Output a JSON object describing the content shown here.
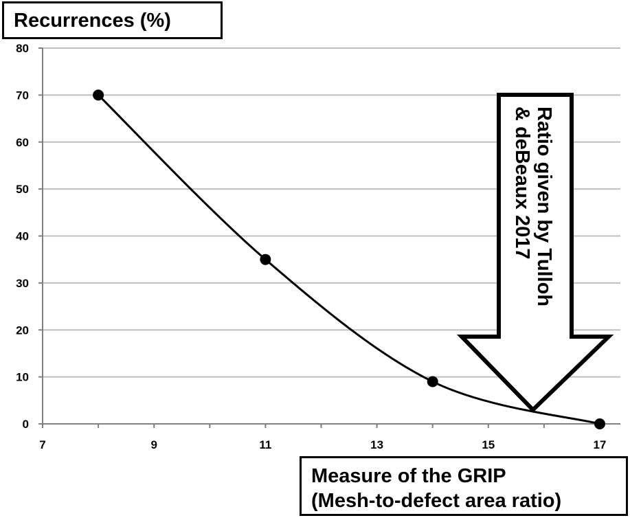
{
  "chart_data": {
    "type": "line",
    "ylabel": "Recurrences (%)",
    "xlabel": [
      "Measure of the GRIP",
      "(Mesh-to-defect area ratio)"
    ],
    "x": [
      8,
      11,
      14,
      17
    ],
    "y": [
      70,
      35,
      9,
      0
    ],
    "xlim": [
      7,
      17
    ],
    "ylim": [
      0,
      80
    ],
    "xticks": [
      7,
      9,
      11,
      13,
      15,
      17
    ],
    "yticks": [
      0,
      10,
      20,
      30,
      40,
      50,
      60,
      70,
      80
    ],
    "grid": true,
    "annotation": {
      "lines": [
        "Ratio given by Tulloh",
        "& deBeaux 2017"
      ],
      "arrow_x": 15.8,
      "arrow_tip_y": 3
    },
    "colors": {
      "line": "#000000",
      "grid": "#bfbfbf",
      "axis": "#808080"
    }
  }
}
